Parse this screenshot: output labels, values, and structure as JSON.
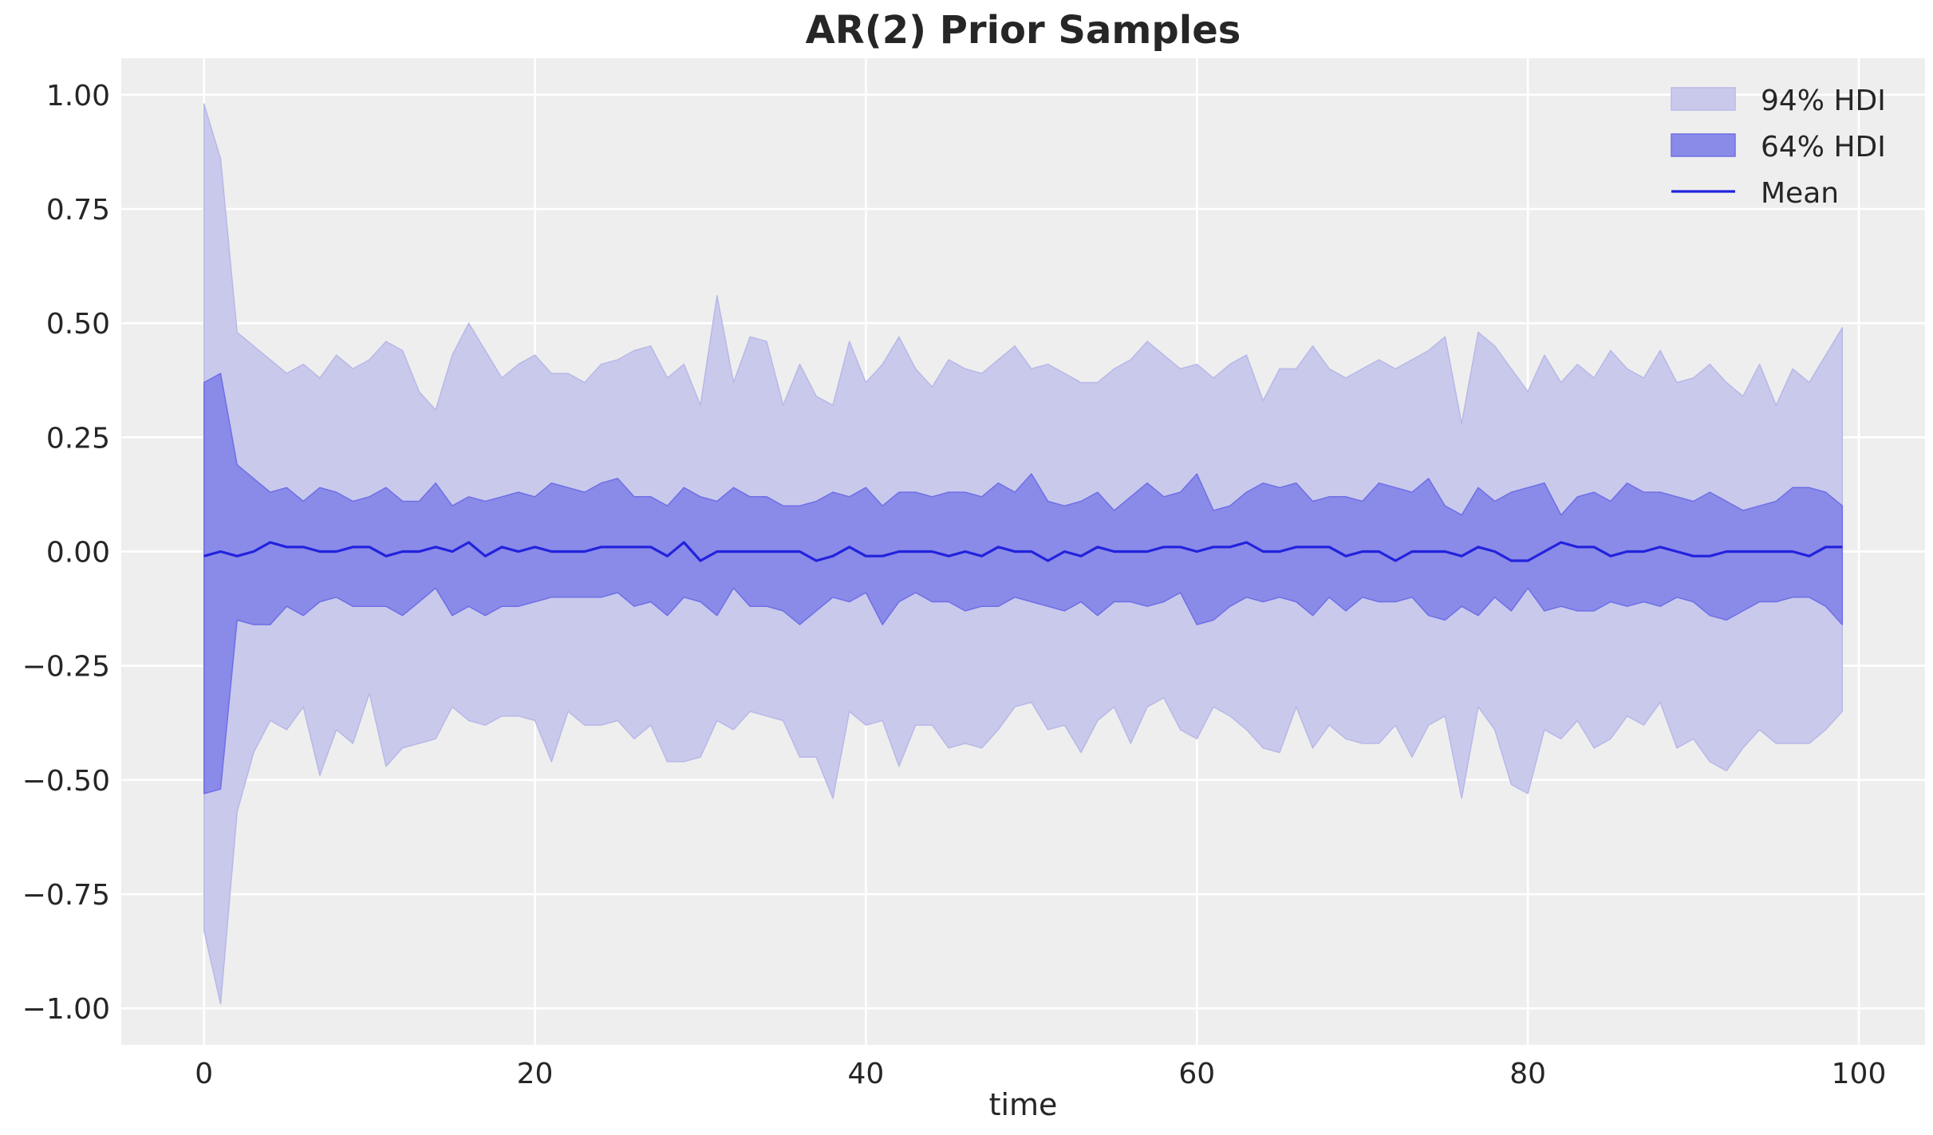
{
  "chart_data": {
    "type": "area",
    "title": "AR(2) Prior Samples",
    "xlabel": "time",
    "ylabel": "",
    "xlim": [
      -5,
      104
    ],
    "ylim": [
      -1.08,
      1.08
    ],
    "xticks": [
      0,
      20,
      40,
      60,
      80,
      100
    ],
    "yticks": [
      -1.0,
      -0.75,
      -0.5,
      -0.25,
      0.0,
      0.25,
      0.5,
      0.75,
      1.0
    ],
    "xtick_labels": [
      "0",
      "20",
      "40",
      "60",
      "80",
      "100"
    ],
    "ytick_labels": [
      "−1.00",
      "−0.75",
      "−0.50",
      "−0.25",
      "0.00",
      "0.25",
      "0.50",
      "0.75",
      "1.00"
    ],
    "grid": true,
    "legend_position": "top-right",
    "colors": {
      "background": "#eeeeee",
      "hdi94": "#c9c9ec",
      "hdi94_edge": "#b8b8e8",
      "hdi64": "#8a8ae8",
      "hdi64_edge": "#6f6fe6",
      "mean": "#2222dd"
    },
    "series": [
      {
        "name": "94% HDI",
        "kind": "band",
        "x": [
          0,
          1,
          2,
          3,
          4,
          5,
          6,
          7,
          8,
          9,
          10,
          11,
          12,
          13,
          14,
          15,
          16,
          17,
          18,
          19,
          20,
          21,
          22,
          23,
          24,
          25,
          26,
          27,
          28,
          29,
          30,
          31,
          32,
          33,
          34,
          35,
          36,
          37,
          38,
          39,
          40,
          41,
          42,
          43,
          44,
          45,
          46,
          47,
          48,
          49,
          50,
          51,
          52,
          53,
          54,
          55,
          56,
          57,
          58,
          59,
          60,
          61,
          62,
          63,
          64,
          65,
          66,
          67,
          68,
          69,
          70,
          71,
          72,
          73,
          74,
          75,
          76,
          77,
          78,
          79,
          80,
          81,
          82,
          83,
          84,
          85,
          86,
          87,
          88,
          89,
          90,
          91,
          92,
          93,
          94,
          95,
          96,
          97,
          98,
          99
        ],
        "upper": [
          0.98,
          0.86,
          0.48,
          0.45,
          0.42,
          0.39,
          0.41,
          0.38,
          0.43,
          0.4,
          0.42,
          0.46,
          0.44,
          0.35,
          0.31,
          0.43,
          0.5,
          0.44,
          0.38,
          0.41,
          0.43,
          0.39,
          0.39,
          0.37,
          0.41,
          0.42,
          0.44,
          0.45,
          0.38,
          0.41,
          0.32,
          0.56,
          0.37,
          0.47,
          0.46,
          0.32,
          0.41,
          0.34,
          0.32,
          0.46,
          0.37,
          0.41,
          0.47,
          0.4,
          0.36,
          0.42,
          0.4,
          0.39,
          0.42,
          0.45,
          0.4,
          0.41,
          0.39,
          0.37,
          0.37,
          0.4,
          0.42,
          0.46,
          0.43,
          0.4,
          0.41,
          0.38,
          0.41,
          0.43,
          0.33,
          0.4,
          0.4,
          0.45,
          0.4,
          0.38,
          0.4,
          0.42,
          0.4,
          0.42,
          0.44,
          0.47,
          0.28,
          0.48,
          0.45,
          0.4,
          0.35,
          0.43,
          0.37,
          0.41,
          0.38,
          0.44,
          0.4,
          0.38,
          0.44,
          0.37,
          0.38,
          0.41,
          0.37,
          0.34,
          0.41,
          0.32,
          0.4,
          0.37,
          0.43,
          0.49
        ],
        "lower": [
          -0.83,
          -0.99,
          -0.57,
          -0.44,
          -0.37,
          -0.39,
          -0.34,
          -0.49,
          -0.39,
          -0.42,
          -0.31,
          -0.47,
          -0.43,
          -0.42,
          -0.41,
          -0.34,
          -0.37,
          -0.38,
          -0.36,
          -0.36,
          -0.37,
          -0.46,
          -0.35,
          -0.38,
          -0.38,
          -0.37,
          -0.41,
          -0.38,
          -0.46,
          -0.46,
          -0.45,
          -0.37,
          -0.39,
          -0.35,
          -0.36,
          -0.37,
          -0.45,
          -0.45,
          -0.54,
          -0.35,
          -0.38,
          -0.37,
          -0.47,
          -0.38,
          -0.38,
          -0.43,
          -0.42,
          -0.43,
          -0.39,
          -0.34,
          -0.33,
          -0.39,
          -0.38,
          -0.44,
          -0.37,
          -0.34,
          -0.42,
          -0.34,
          -0.32,
          -0.39,
          -0.41,
          -0.34,
          -0.36,
          -0.39,
          -0.43,
          -0.44,
          -0.34,
          -0.43,
          -0.38,
          -0.41,
          -0.42,
          -0.42,
          -0.38,
          -0.45,
          -0.38,
          -0.36,
          -0.54,
          -0.34,
          -0.39,
          -0.51,
          -0.53,
          -0.39,
          -0.41,
          -0.37,
          -0.43,
          -0.41,
          -0.36,
          -0.38,
          -0.33,
          -0.43,
          -0.41,
          -0.46,
          -0.48,
          -0.43,
          -0.39,
          -0.42,
          -0.42,
          -0.42,
          -0.39,
          -0.35
        ]
      },
      {
        "name": "64% HDI",
        "kind": "band",
        "x": [
          0,
          1,
          2,
          3,
          4,
          5,
          6,
          7,
          8,
          9,
          10,
          11,
          12,
          13,
          14,
          15,
          16,
          17,
          18,
          19,
          20,
          21,
          22,
          23,
          24,
          25,
          26,
          27,
          28,
          29,
          30,
          31,
          32,
          33,
          34,
          35,
          36,
          37,
          38,
          39,
          40,
          41,
          42,
          43,
          44,
          45,
          46,
          47,
          48,
          49,
          50,
          51,
          52,
          53,
          54,
          55,
          56,
          57,
          58,
          59,
          60,
          61,
          62,
          63,
          64,
          65,
          66,
          67,
          68,
          69,
          70,
          71,
          72,
          73,
          74,
          75,
          76,
          77,
          78,
          79,
          80,
          81,
          82,
          83,
          84,
          85,
          86,
          87,
          88,
          89,
          90,
          91,
          92,
          93,
          94,
          95,
          96,
          97,
          98,
          99
        ],
        "upper": [
          0.37,
          0.39,
          0.19,
          0.16,
          0.13,
          0.14,
          0.11,
          0.14,
          0.13,
          0.11,
          0.12,
          0.14,
          0.11,
          0.11,
          0.15,
          0.1,
          0.12,
          0.11,
          0.12,
          0.13,
          0.12,
          0.15,
          0.14,
          0.13,
          0.15,
          0.16,
          0.12,
          0.12,
          0.1,
          0.14,
          0.12,
          0.11,
          0.14,
          0.12,
          0.12,
          0.1,
          0.1,
          0.11,
          0.13,
          0.12,
          0.14,
          0.1,
          0.13,
          0.13,
          0.12,
          0.13,
          0.13,
          0.12,
          0.15,
          0.13,
          0.17,
          0.11,
          0.1,
          0.11,
          0.13,
          0.09,
          0.12,
          0.15,
          0.12,
          0.13,
          0.17,
          0.09,
          0.1,
          0.13,
          0.15,
          0.14,
          0.15,
          0.11,
          0.12,
          0.12,
          0.11,
          0.15,
          0.14,
          0.13,
          0.16,
          0.1,
          0.08,
          0.14,
          0.11,
          0.13,
          0.14,
          0.15,
          0.08,
          0.12,
          0.13,
          0.11,
          0.15,
          0.13,
          0.13,
          0.12,
          0.11,
          0.13,
          0.11,
          0.09,
          0.1,
          0.11,
          0.14,
          0.14,
          0.13,
          0.1
        ],
        "lower": [
          -0.53,
          -0.52,
          -0.15,
          -0.16,
          -0.16,
          -0.12,
          -0.14,
          -0.11,
          -0.1,
          -0.12,
          -0.12,
          -0.12,
          -0.14,
          -0.11,
          -0.08,
          -0.14,
          -0.12,
          -0.14,
          -0.12,
          -0.12,
          -0.11,
          -0.1,
          -0.1,
          -0.1,
          -0.1,
          -0.09,
          -0.12,
          -0.11,
          -0.14,
          -0.1,
          -0.11,
          -0.14,
          -0.08,
          -0.12,
          -0.12,
          -0.13,
          -0.16,
          -0.13,
          -0.1,
          -0.11,
          -0.09,
          -0.16,
          -0.11,
          -0.09,
          -0.11,
          -0.11,
          -0.13,
          -0.12,
          -0.12,
          -0.1,
          -0.11,
          -0.12,
          -0.13,
          -0.11,
          -0.14,
          -0.11,
          -0.11,
          -0.12,
          -0.11,
          -0.09,
          -0.16,
          -0.15,
          -0.12,
          -0.1,
          -0.11,
          -0.1,
          -0.11,
          -0.14,
          -0.1,
          -0.13,
          -0.1,
          -0.11,
          -0.11,
          -0.1,
          -0.14,
          -0.15,
          -0.12,
          -0.14,
          -0.1,
          -0.13,
          -0.08,
          -0.13,
          -0.12,
          -0.13,
          -0.13,
          -0.11,
          -0.12,
          -0.11,
          -0.12,
          -0.1,
          -0.11,
          -0.14,
          -0.15,
          -0.13,
          -0.11,
          -0.11,
          -0.1,
          -0.1,
          -0.12,
          -0.16
        ]
      },
      {
        "name": "Mean",
        "kind": "line",
        "x": [
          0,
          1,
          2,
          3,
          4,
          5,
          6,
          7,
          8,
          9,
          10,
          11,
          12,
          13,
          14,
          15,
          16,
          17,
          18,
          19,
          20,
          21,
          22,
          23,
          24,
          25,
          26,
          27,
          28,
          29,
          30,
          31,
          32,
          33,
          34,
          35,
          36,
          37,
          38,
          39,
          40,
          41,
          42,
          43,
          44,
          45,
          46,
          47,
          48,
          49,
          50,
          51,
          52,
          53,
          54,
          55,
          56,
          57,
          58,
          59,
          60,
          61,
          62,
          63,
          64,
          65,
          66,
          67,
          68,
          69,
          70,
          71,
          72,
          73,
          74,
          75,
          76,
          77,
          78,
          79,
          80,
          81,
          82,
          83,
          84,
          85,
          86,
          87,
          88,
          89,
          90,
          91,
          92,
          93,
          94,
          95,
          96,
          97,
          98,
          99
        ],
        "values": [
          -0.01,
          0.0,
          -0.01,
          0.0,
          0.02,
          0.01,
          0.01,
          0.0,
          0.0,
          0.01,
          0.01,
          -0.01,
          0.0,
          0.0,
          0.01,
          0.0,
          0.02,
          -0.01,
          0.01,
          0.0,
          0.01,
          0.0,
          0.0,
          0.0,
          0.01,
          0.01,
          0.01,
          0.01,
          -0.01,
          0.02,
          -0.02,
          0.0,
          0.0,
          0.0,
          0.0,
          0.0,
          0.0,
          -0.02,
          -0.01,
          0.01,
          -0.01,
          -0.01,
          0.0,
          0.0,
          0.0,
          -0.01,
          0.0,
          -0.01,
          0.01,
          0.0,
          0.0,
          -0.02,
          0.0,
          -0.01,
          0.01,
          0.0,
          0.0,
          0.0,
          0.01,
          0.01,
          0.0,
          0.01,
          0.01,
          0.02,
          0.0,
          0.0,
          0.01,
          0.01,
          0.01,
          -0.01,
          0.0,
          0.0,
          -0.02,
          0.0,
          0.0,
          0.0,
          -0.01,
          0.01,
          0.0,
          -0.02,
          -0.02,
          0.0,
          0.02,
          0.01,
          0.01,
          -0.01,
          0.0,
          0.0,
          0.01,
          0.0,
          -0.01,
          -0.01,
          0.0,
          0.0,
          0.0,
          0.0,
          0.0,
          -0.01,
          0.01,
          0.01
        ]
      }
    ]
  }
}
